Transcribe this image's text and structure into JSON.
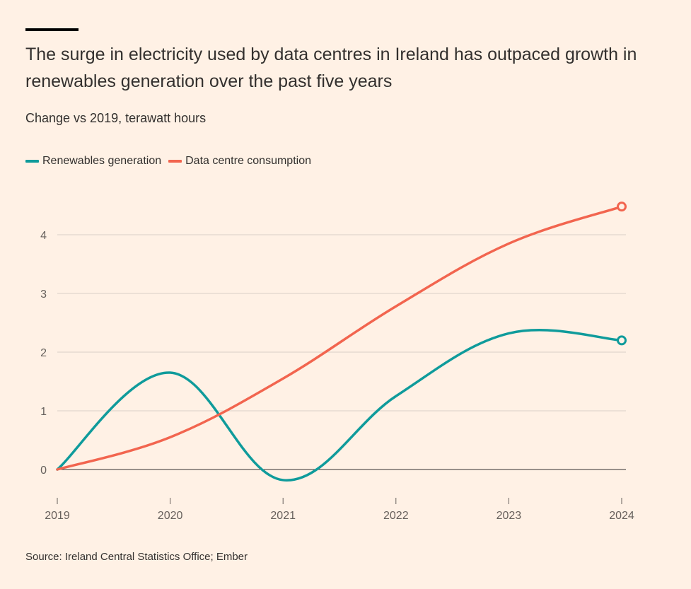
{
  "colors": {
    "background": "#fff1e5",
    "renewables": "#0f9b9b",
    "data_centres": "#f2654f",
    "gridline": "#d9cfc6",
    "zero_line": "#33302e"
  },
  "chart_data": {
    "type": "line",
    "title": "The surge in electricity used by data centres in Ireland has outpaced growth in renewables generation over the past five years",
    "subtitle": "Change vs 2019, terawatt hours",
    "xlabel": "",
    "ylabel": "",
    "x": [
      2019,
      2020,
      2021,
      2022,
      2023,
      2024
    ],
    "x_tick_labels": [
      "2019",
      "2020",
      "2021",
      "2022",
      "2023",
      "2024"
    ],
    "y_ticks": [
      0,
      1,
      2,
      3,
      4
    ],
    "y_tick_labels": [
      "0",
      "1",
      "2",
      "3",
      "4"
    ],
    "ylim": [
      -0.5,
      4.8
    ],
    "series": [
      {
        "name": "Renewables generation",
        "color": "#0f9b9b",
        "values": [
          0,
          1.65,
          -0.18,
          1.25,
          2.32,
          2.2
        ]
      },
      {
        "name": "Data centre consumption",
        "color": "#f2654f",
        "values": [
          0,
          0.55,
          1.55,
          2.78,
          3.85,
          4.48
        ]
      }
    ],
    "legend_position": "top-left",
    "source": "Source: Ireland Central Statistics Office; Ember"
  }
}
